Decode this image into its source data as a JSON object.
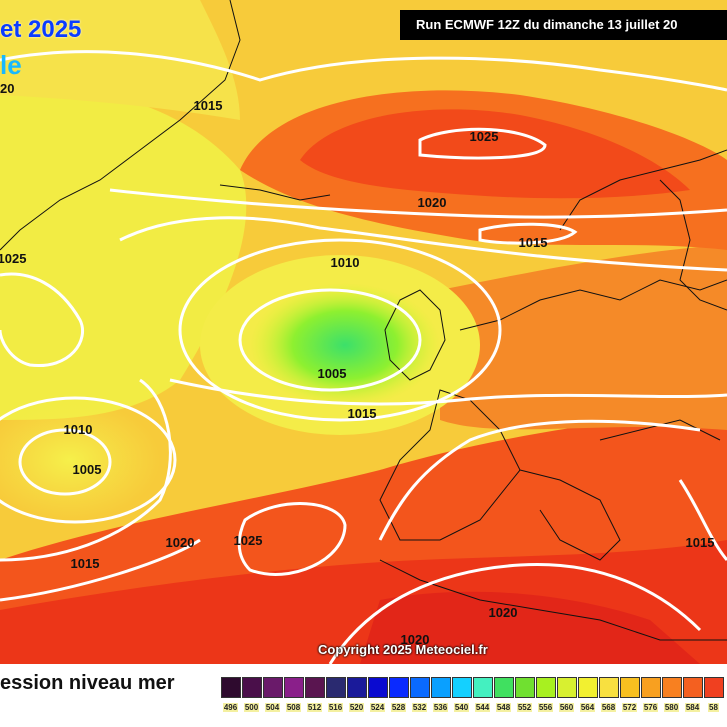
{
  "header": {
    "title_line1": "et 2025",
    "title_line2": "le",
    "title_line3": "20",
    "run_banner": "Run ECMWF 12Z du dimanche 13 juillet 20",
    "copyright": "Copyright 2025 Meteociel.fr"
  },
  "isobars": [
    {
      "label": "1015"
    },
    {
      "label": "1025"
    },
    {
      "label": "1020"
    },
    {
      "label": "1025"
    },
    {
      "label": "1015"
    },
    {
      "label": "1010"
    },
    {
      "label": "1005"
    },
    {
      "label": "1015"
    },
    {
      "label": "1010"
    },
    {
      "label": "1005"
    },
    {
      "label": "1020"
    },
    {
      "label": "1025"
    },
    {
      "label": "1015"
    },
    {
      "label": "1015"
    },
    {
      "label": "1020"
    },
    {
      "label": "1020"
    }
  ],
  "legend": {
    "title": "ession niveau mer",
    "values": [
      "496",
      "500",
      "504",
      "508",
      "512",
      "516",
      "520",
      "524",
      "528",
      "532",
      "536",
      "540",
      "544",
      "548",
      "552",
      "556",
      "560",
      "564",
      "568",
      "572",
      "576",
      "580",
      "584",
      "58"
    ],
    "colors": [
      "#2e0a2e",
      "#4a0f4a",
      "#6a1a6a",
      "#8a1f8a",
      "#5a1550",
      "#2a2a70",
      "#1a1a9a",
      "#0a0ad0",
      "#0a2aff",
      "#0a6aff",
      "#0aa0ff",
      "#14d0ff",
      "#44f0c0",
      "#40e060",
      "#70e030",
      "#a8f020",
      "#d8f030",
      "#f2f030",
      "#f8e040",
      "#f8c020",
      "#f8a020",
      "#f88020",
      "#f46020",
      "#f04020"
    ]
  }
}
